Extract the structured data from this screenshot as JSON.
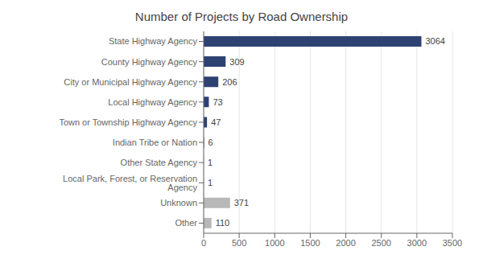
{
  "chart_data": {
    "type": "bar",
    "orientation": "horizontal",
    "title": "Number of Projects by Road Ownership",
    "categories": [
      "Other",
      "Unknown",
      "Local Park, Forest, or Reservation Agency",
      "Other State Agency",
      "Indian Tribe or Nation",
      "Town or Township Highway Agency",
      "Local Highway Agency",
      "City or Municipal Highway Agency",
      "County Highway Agency",
      "State Highway Agency"
    ],
    "values": [
      110,
      371,
      1,
      1,
      6,
      47,
      73,
      206,
      309,
      3064
    ],
    "colors": [
      "#b8b8b8",
      "#b8b8b8",
      "#2e4272",
      "#2e4272",
      "#2e4272",
      "#2e4272",
      "#2e4272",
      "#2e4272",
      "#2e4272",
      "#2e4272"
    ],
    "xlim": [
      0,
      3500
    ],
    "xticks": [
      0,
      500,
      1000,
      1500,
      2000,
      2500,
      3000,
      3500
    ],
    "grid": true,
    "data_labels": true
  }
}
